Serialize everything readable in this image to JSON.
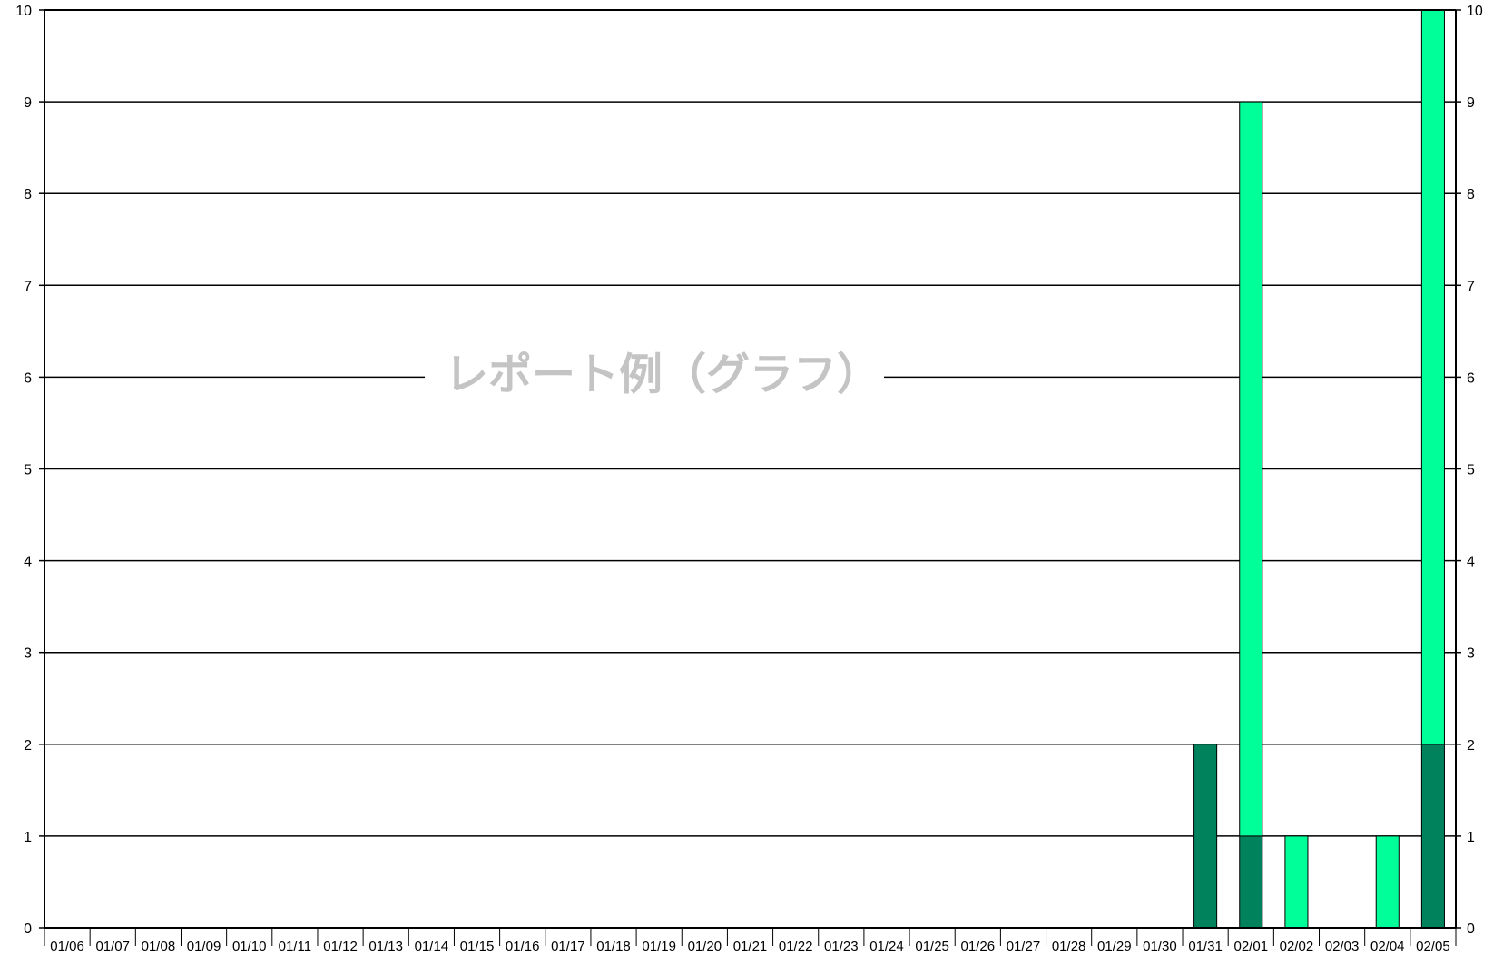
{
  "chart_data": {
    "type": "bar",
    "stacked": true,
    "title": "",
    "xlabel": "",
    "ylabel": "",
    "ylim": [
      0,
      10
    ],
    "yticks": [
      0,
      1,
      2,
      3,
      4,
      5,
      6,
      7,
      8,
      9,
      10
    ],
    "secondary_yaxis": true,
    "grid": true,
    "categories": [
      "01/06",
      "01/07",
      "01/08",
      "01/09",
      "01/10",
      "01/11",
      "01/12",
      "01/13",
      "01/14",
      "01/15",
      "01/16",
      "01/17",
      "01/18",
      "01/19",
      "01/20",
      "01/21",
      "01/22",
      "01/23",
      "01/24",
      "01/25",
      "01/26",
      "01/27",
      "01/28",
      "01/29",
      "01/30",
      "01/31",
      "02/01",
      "02/02",
      "02/03",
      "02/04",
      "02/05"
    ],
    "series": [
      {
        "color": "#00825c",
        "values": [
          0,
          0,
          0,
          0,
          0,
          0,
          0,
          0,
          0,
          0,
          0,
          0,
          0,
          0,
          0,
          0,
          0,
          0,
          0,
          0,
          0,
          0,
          0,
          0,
          0,
          2,
          1,
          0,
          0,
          0,
          2
        ]
      },
      {
        "color": "#00ff99",
        "values": [
          0,
          0,
          0,
          0,
          0,
          0,
          0,
          0,
          0,
          0,
          0,
          0,
          0,
          0,
          0,
          0,
          0,
          0,
          0,
          0,
          0,
          0,
          0,
          0,
          0,
          0,
          8,
          1,
          0,
          1,
          8
        ]
      }
    ],
    "watermark": "レポート例（グラフ）"
  }
}
